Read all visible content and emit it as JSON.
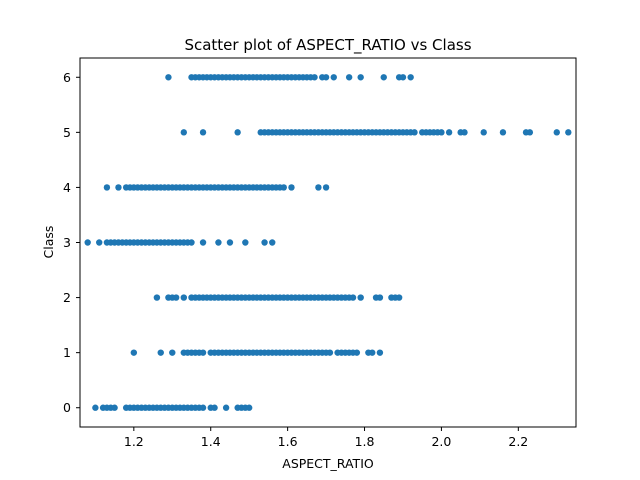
{
  "chart_data": {
    "type": "scatter",
    "title": "Scatter plot of ASPECT_RATIO vs Class",
    "xlabel": "ASPECT_RATIO",
    "ylabel": "Class",
    "xlim": [
      1.06,
      2.35
    ],
    "ylim": [
      -0.35,
      6.35
    ],
    "grid": false,
    "marker_color": "#1f77b4",
    "x_ticks": [
      {
        "value": 1.2,
        "label": "1.2"
      },
      {
        "value": 1.4,
        "label": "1.4"
      },
      {
        "value": 1.6,
        "label": "1.6"
      },
      {
        "value": 1.8,
        "label": "1.8"
      },
      {
        "value": 2.0,
        "label": "2.0"
      },
      {
        "value": 2.2,
        "label": "2.2"
      }
    ],
    "y_ticks": [
      {
        "value": 0,
        "label": "0"
      },
      {
        "value": 1,
        "label": "1"
      },
      {
        "value": 2,
        "label": "2"
      },
      {
        "value": 3,
        "label": "3"
      },
      {
        "value": 4,
        "label": "4"
      },
      {
        "value": 5,
        "label": "5"
      },
      {
        "value": 6,
        "label": "6"
      }
    ],
    "series": [
      {
        "class": 0,
        "x": [
          1.1,
          1.12,
          1.13,
          1.14,
          1.15,
          1.18,
          1.19,
          1.2,
          1.21,
          1.22,
          1.23,
          1.24,
          1.25,
          1.26,
          1.27,
          1.28,
          1.29,
          1.3,
          1.31,
          1.32,
          1.33,
          1.34,
          1.35,
          1.36,
          1.37,
          1.38,
          1.4,
          1.41,
          1.44,
          1.47,
          1.48,
          1.49,
          1.5
        ]
      },
      {
        "class": 1,
        "x": [
          1.2,
          1.27,
          1.3,
          1.33,
          1.34,
          1.35,
          1.36,
          1.37,
          1.38,
          1.4,
          1.41,
          1.42,
          1.43,
          1.44,
          1.45,
          1.46,
          1.47,
          1.48,
          1.49,
          1.5,
          1.51,
          1.52,
          1.53,
          1.54,
          1.55,
          1.56,
          1.57,
          1.58,
          1.59,
          1.6,
          1.61,
          1.62,
          1.63,
          1.64,
          1.65,
          1.66,
          1.67,
          1.68,
          1.69,
          1.7,
          1.71,
          1.73,
          1.74,
          1.75,
          1.76,
          1.77,
          1.78,
          1.81,
          1.82,
          1.84
        ]
      },
      {
        "class": 2,
        "x": [
          1.26,
          1.29,
          1.3,
          1.31,
          1.33,
          1.35,
          1.36,
          1.37,
          1.38,
          1.39,
          1.4,
          1.41,
          1.42,
          1.43,
          1.44,
          1.45,
          1.46,
          1.47,
          1.48,
          1.49,
          1.5,
          1.51,
          1.52,
          1.53,
          1.54,
          1.55,
          1.56,
          1.57,
          1.58,
          1.59,
          1.6,
          1.61,
          1.62,
          1.63,
          1.64,
          1.65,
          1.66,
          1.67,
          1.68,
          1.69,
          1.7,
          1.71,
          1.72,
          1.73,
          1.74,
          1.75,
          1.76,
          1.77,
          1.79,
          1.83,
          1.84,
          1.87,
          1.88,
          1.89
        ]
      },
      {
        "class": 3,
        "x": [
          1.08,
          1.11,
          1.13,
          1.14,
          1.15,
          1.16,
          1.17,
          1.18,
          1.19,
          1.2,
          1.21,
          1.22,
          1.23,
          1.24,
          1.25,
          1.26,
          1.27,
          1.28,
          1.29,
          1.3,
          1.31,
          1.32,
          1.33,
          1.34,
          1.35,
          1.38,
          1.42,
          1.45,
          1.49,
          1.54,
          1.56
        ]
      },
      {
        "class": 4,
        "x": [
          1.13,
          1.16,
          1.18,
          1.19,
          1.2,
          1.21,
          1.22,
          1.23,
          1.24,
          1.25,
          1.26,
          1.27,
          1.28,
          1.29,
          1.3,
          1.31,
          1.32,
          1.33,
          1.34,
          1.35,
          1.36,
          1.37,
          1.38,
          1.39,
          1.4,
          1.41,
          1.42,
          1.43,
          1.44,
          1.45,
          1.46,
          1.47,
          1.48,
          1.49,
          1.5,
          1.51,
          1.52,
          1.53,
          1.54,
          1.55,
          1.56,
          1.57,
          1.58,
          1.59,
          1.61,
          1.68,
          1.7
        ]
      },
      {
        "class": 5,
        "x": [
          1.33,
          1.38,
          1.47,
          1.53,
          1.54,
          1.55,
          1.56,
          1.57,
          1.58,
          1.59,
          1.6,
          1.61,
          1.62,
          1.63,
          1.64,
          1.65,
          1.66,
          1.67,
          1.68,
          1.69,
          1.7,
          1.71,
          1.72,
          1.73,
          1.74,
          1.75,
          1.76,
          1.77,
          1.78,
          1.79,
          1.8,
          1.81,
          1.82,
          1.83,
          1.84,
          1.85,
          1.86,
          1.87,
          1.88,
          1.89,
          1.9,
          1.91,
          1.92,
          1.93,
          1.95,
          1.96,
          1.97,
          1.98,
          1.99,
          2.0,
          2.02,
          2.05,
          2.06,
          2.11,
          2.16,
          2.22,
          2.23,
          2.3,
          2.33
        ]
      },
      {
        "class": 6,
        "x": [
          1.29,
          1.35,
          1.36,
          1.37,
          1.38,
          1.39,
          1.4,
          1.41,
          1.42,
          1.43,
          1.44,
          1.45,
          1.46,
          1.47,
          1.48,
          1.49,
          1.5,
          1.51,
          1.52,
          1.53,
          1.54,
          1.55,
          1.56,
          1.57,
          1.58,
          1.59,
          1.6,
          1.61,
          1.62,
          1.63,
          1.64,
          1.65,
          1.66,
          1.67,
          1.69,
          1.7,
          1.72,
          1.76,
          1.79,
          1.85,
          1.89,
          1.9,
          1.92
        ]
      }
    ]
  }
}
